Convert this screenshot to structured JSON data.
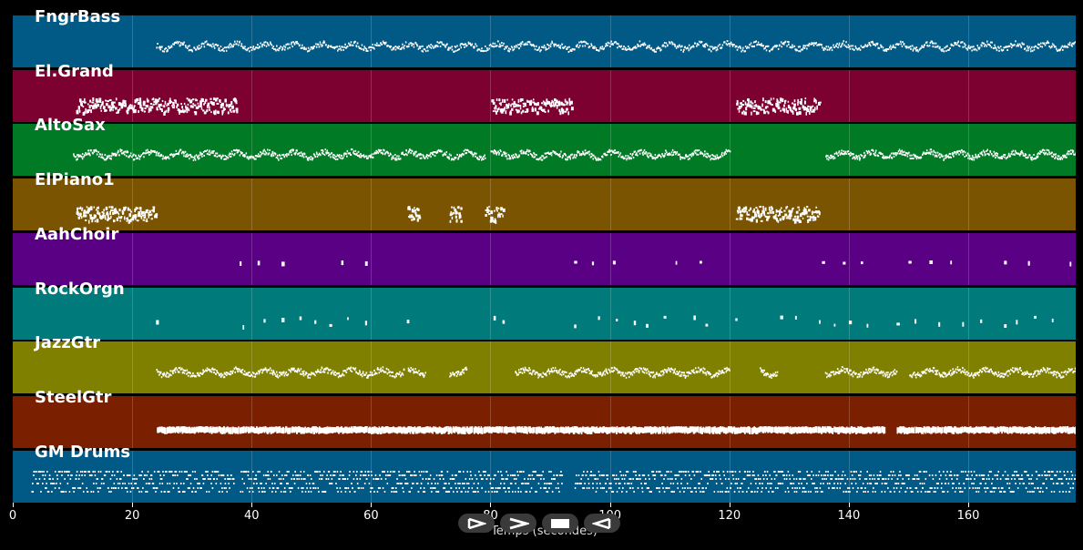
{
  "tracks": [
    {
      "name": "FngrBass",
      "color": "#005a85",
      "pattern": "line",
      "segments": [
        [
          24,
          178
        ]
      ],
      "density": 1.2,
      "spread": 0.12
    },
    {
      "name": "El.Grand",
      "color": "#7c0030",
      "pattern": "cluster",
      "segments": [
        [
          10.5,
          37.5
        ],
        [
          80,
          93.5
        ],
        [
          121,
          135
        ]
      ],
      "density": 1.6,
      "spread": 0.3
    },
    {
      "name": "AltoSax",
      "color": "#007a25",
      "pattern": "line",
      "segments": [
        [
          10,
          79
        ],
        [
          80,
          120
        ],
        [
          136,
          178
        ]
      ],
      "density": 1.5,
      "spread": 0.14
    },
    {
      "name": "ElPiano1",
      "color": "#7a5400",
      "pattern": "cluster",
      "segments": [
        [
          10.5,
          24
        ],
        [
          66,
          68
        ],
        [
          73,
          75
        ],
        [
          79,
          82
        ],
        [
          121,
          135
        ]
      ],
      "density": 1.8,
      "spread": 0.3
    },
    {
      "name": "AahChoir",
      "color": "#5a0085",
      "pattern": "sparse",
      "notes": [
        38,
        41,
        45,
        55,
        59,
        94,
        97,
        100.5,
        111,
        115,
        135.5,
        139,
        142,
        150,
        153.5,
        157,
        166,
        170,
        177
      ],
      "spread": 0.05
    },
    {
      "name": "RockOrgn",
      "color": "#007a7a",
      "pattern": "sparse",
      "notes": [
        24,
        38.5,
        42,
        45,
        48,
        50.5,
        53,
        56,
        59,
        66,
        80.5,
        82,
        94,
        98,
        101,
        104,
        106,
        109,
        114,
        116,
        121,
        128.5,
        131,
        135,
        137.5,
        140,
        143,
        148,
        151,
        155,
        159,
        162,
        166,
        168,
        171,
        174
      ],
      "spread": 0.35
    },
    {
      "name": "JazzGtr",
      "color": "#7f7f00",
      "pattern": "line",
      "segments": [
        [
          24,
          65.5
        ],
        [
          66,
          69
        ],
        [
          73,
          76
        ],
        [
          84,
          120
        ],
        [
          125,
          128
        ],
        [
          136,
          148
        ],
        [
          150,
          178
        ]
      ],
      "density": 1.5,
      "spread": 0.18
    },
    {
      "name": "SteelGtr",
      "color": "#7a2000",
      "pattern": "block",
      "segments": [
        [
          24,
          146
        ],
        [
          148,
          178
        ]
      ],
      "density": 1.0,
      "spread": 0.05
    },
    {
      "name": "GM Drums",
      "color": "#005a85",
      "pattern": "drums",
      "segments": [
        [
          3,
          37
        ],
        [
          38,
          92
        ],
        [
          94,
          178
        ]
      ],
      "density": 1.6,
      "spread": 0.4
    }
  ],
  "axis": {
    "label": "Temps (secondes)",
    "min": 0,
    "max": 178,
    "ticks": [
      0,
      20,
      40,
      60,
      80,
      100,
      120,
      140,
      160
    ],
    "tick_labels": [
      "0",
      "20",
      "40",
      "60",
      "80",
      "100",
      "120",
      "140",
      "160"
    ]
  },
  "controls": [
    {
      "name": "play-from-start-icon",
      "label": "play from start"
    },
    {
      "name": "play-icon",
      "label": "play"
    },
    {
      "name": "stop-icon",
      "label": "stop"
    },
    {
      "name": "rewind-icon",
      "label": "rewind"
    }
  ]
}
